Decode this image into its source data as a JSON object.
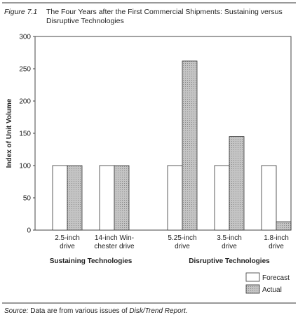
{
  "chart_data": {
    "type": "bar",
    "figure_label": "Figure 7.1",
    "title": "The Four Years after the First Commercial Shipments: Sustaining versus\nDisruptive Technologies",
    "y_label": "Index of Unit Volume",
    "categories": [
      "2.5-inch\ndrive",
      "14-inch Win-\nchester drive",
      "5.25-inch\ndrive",
      "3.5-inch\ndrive",
      "1.8-inch\ndrive"
    ],
    "group_labels": [
      "Sustaining Technologies",
      "Disruptive Technologies"
    ],
    "series": [
      {
        "name": "Forecast",
        "color": "#ffffff",
        "values": [
          100,
          100,
          100,
          100,
          100
        ]
      },
      {
        "name": "Actual",
        "color": "#c4c4c4",
        "values": [
          100,
          100,
          262,
          145,
          13
        ]
      }
    ],
    "ylim": [
      0,
      300
    ],
    "yticks": [
      0,
      50,
      100,
      150,
      200,
      250,
      300
    ],
    "source_label": "Source:",
    "source_text": "Data are from various issues of",
    "source_title": "Disk/Trend Report."
  }
}
